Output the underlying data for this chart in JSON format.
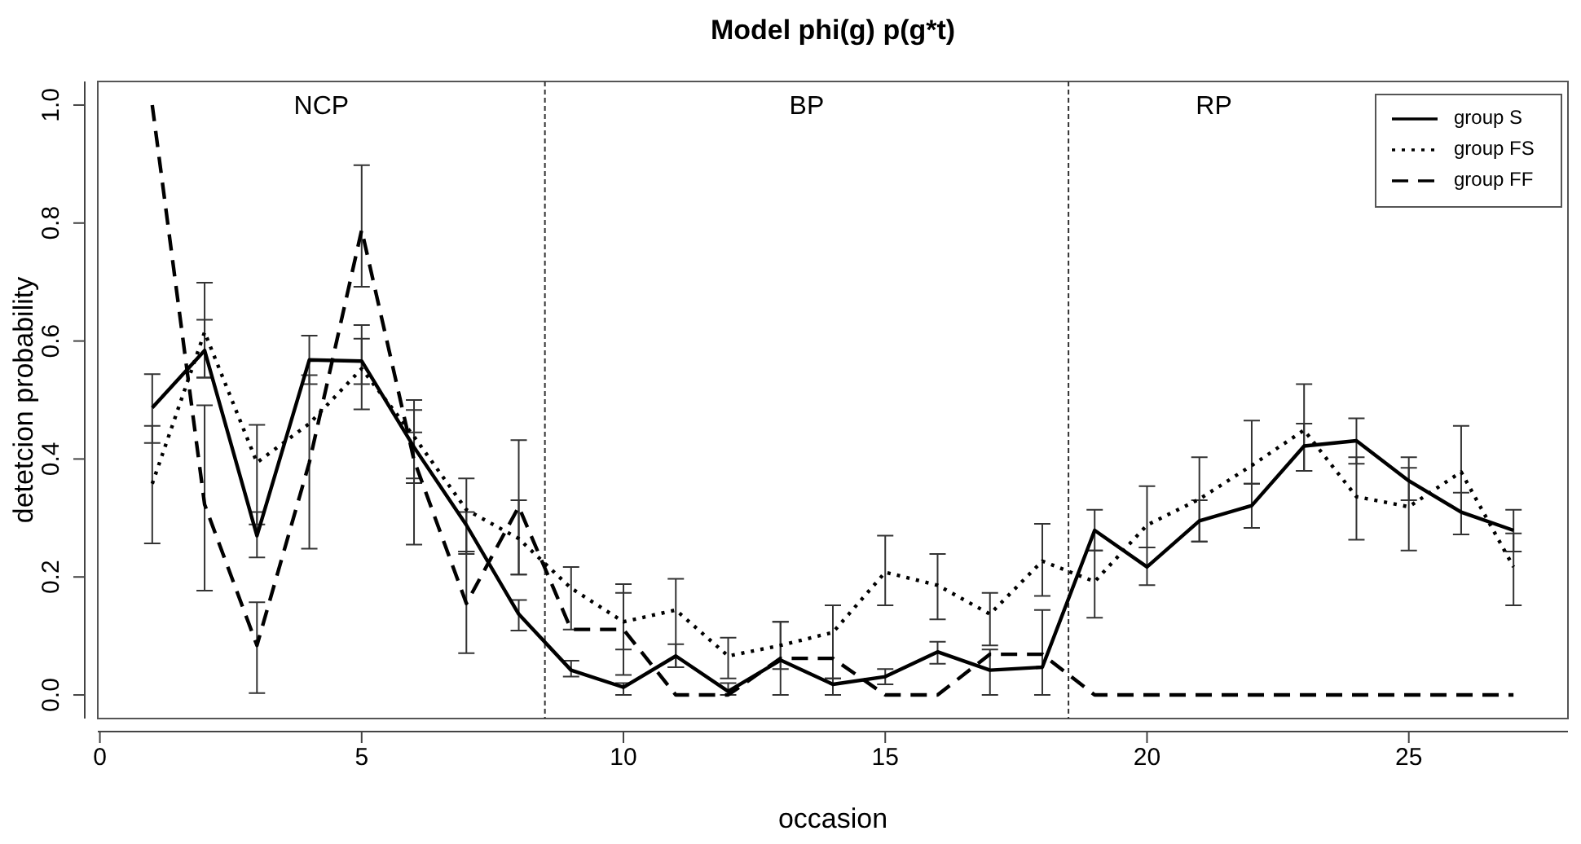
{
  "chart_data": {
    "type": "line",
    "title": "Model phi(g) p(g*t)",
    "xlabel": "occasion",
    "ylabel": "detetcion probability",
    "x": [
      1,
      2,
      3,
      4,
      5,
      6,
      7,
      8,
      9,
      10,
      11,
      12,
      13,
      14,
      15,
      16,
      17,
      18,
      19,
      20,
      21,
      22,
      23,
      24,
      25,
      26,
      27
    ],
    "series": [
      {
        "name": "group S",
        "color": "#000000",
        "line_style": "solid",
        "values": [
          0.487,
          0.584,
          0.27,
          0.568,
          0.566,
          0.42,
          0.288,
          0.137,
          0.042,
          0.013,
          0.066,
          0.006,
          0.059,
          0.018,
          0.031,
          0.073,
          0.042,
          0.047,
          0.279,
          0.217,
          0.295,
          0.321,
          0.422,
          0.431,
          0.363,
          0.31,
          0.279
        ],
        "errors": [
          [
            0.427,
            0.544
          ],
          [
            0.538,
            0.636
          ],
          [
            0.233,
            0.31
          ],
          [
            0.527,
            0.609
          ],
          [
            0.527,
            0.627
          ],
          [
            0.359,
            0.445
          ],
          [
            0.239,
            0.31
          ],
          [
            0.109,
            0.161
          ],
          [
            0.031,
            0.058
          ],
          [
            0.0,
            0.02
          ],
          [
            0.047,
            0.086
          ],
          [
            0.0,
            0.02
          ],
          [
            0.0,
            0.124
          ],
          [
            0.0,
            0.028
          ],
          [
            0.018,
            0.044
          ],
          [
            0.053,
            0.09
          ],
          [
            0.0,
            0.077
          ],
          [
            0.0,
            0.144
          ],
          [
            0.245,
            0.314
          ],
          [
            0.186,
            0.25
          ],
          [
            0.26,
            0.33
          ],
          [
            0.283,
            0.358
          ],
          [
            0.38,
            0.46
          ],
          [
            0.392,
            0.469
          ],
          [
            0.33,
            0.403
          ],
          [
            0.272,
            0.343
          ],
          [
            0.243,
            0.314
          ]
        ]
      },
      {
        "name": "group FS",
        "color": "#000000",
        "line_style": "dotted",
        "values": [
          0.358,
          0.615,
          0.394,
          0.46,
          0.553,
          0.438,
          0.314,
          0.265,
          0.181,
          0.124,
          0.144,
          0.066,
          0.084,
          0.106,
          0.208,
          0.186,
          0.137,
          0.227,
          0.192,
          0.288,
          0.332,
          0.389,
          0.449,
          0.336,
          0.319,
          0.378,
          0.217
        ],
        "errors": [
          [
            0.257,
            0.456
          ],
          [
            0.538,
            0.699
          ],
          [
            0.289,
            0.458
          ],
          [
            0.248,
            0.542
          ],
          [
            0.484,
            0.604
          ],
          [
            0.367,
            0.483
          ],
          [
            0.243,
            0.367
          ],
          [
            0.204,
            0.33
          ],
          [
            0.111,
            0.217
          ],
          [
            0.077,
            0.173
          ],
          [
            0.047,
            0.197
          ],
          [
            0.028,
            0.097
          ],
          [
            0.044,
            0.124
          ],
          [
            0.028,
            0.152
          ],
          [
            0.152,
            0.27
          ],
          [
            0.128,
            0.239
          ],
          [
            0.084,
            0.173
          ],
          [
            0.168,
            0.29
          ],
          [
            0.131,
            0.245
          ],
          [
            0.25,
            0.354
          ],
          [
            0.26,
            0.403
          ],
          [
            0.358,
            0.465
          ],
          [
            0.38,
            0.527
          ],
          [
            0.263,
            0.403
          ],
          [
            0.245,
            0.385
          ],
          [
            0.272,
            0.456
          ],
          [
            0.152,
            0.274
          ]
        ]
      },
      {
        "name": "group FF",
        "color": "#000000",
        "line_style": "dashed",
        "values": [
          1.0,
          0.323,
          0.084,
          0.394,
          0.788,
          0.398,
          0.155,
          0.319,
          0.111,
          0.111,
          0,
          0,
          0.062,
          0.062,
          0,
          0,
          0.069,
          0.069,
          0,
          0,
          0,
          0,
          0,
          0,
          0,
          0,
          0
        ],
        "errors": [
          null,
          [
            0.177,
            0.491
          ],
          [
            0.003,
            0.157
          ],
          null,
          [
            0.692,
            0.898
          ],
          [
            0.255,
            0.5
          ],
          [
            0.071,
            0.243
          ],
          [
            0.204,
            0.432
          ],
          null,
          [
            0.034,
            0.188
          ],
          null,
          null,
          null,
          null,
          null,
          null,
          null,
          null,
          null,
          null,
          null,
          null,
          null,
          null,
          null,
          null,
          null
        ]
      }
    ],
    "xlim": [
      -0.04,
      28.04
    ],
    "xticks": [
      0,
      5,
      10,
      15,
      20,
      25
    ],
    "ylim": [
      -0.04,
      1.04
    ],
    "yticks": [
      {
        "value": 0,
        "label": "0.0"
      },
      0.2,
      0.4,
      0.6,
      0.8,
      {
        "value": 1,
        "label": "1.0"
      }
    ],
    "ref_lines": [
      {
        "axis": "x",
        "value": 8.5,
        "line_style": "dashed"
      },
      {
        "axis": "x",
        "value": 18.5,
        "line_style": "dashed"
      }
    ],
    "annotations": [
      "NCP",
      "BP",
      "RP"
    ],
    "legend": "top right",
    "grid": false,
    "marker": "none"
  }
}
